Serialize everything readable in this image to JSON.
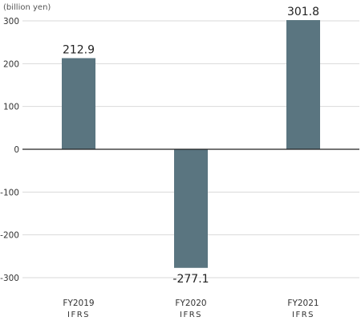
{
  "chart_data": {
    "type": "bar",
    "unit_label": "(billion yen)",
    "title": "",
    "xlabel": "",
    "ylabel": "",
    "categories": [
      {
        "line1": "FY2019",
        "line2": "IFRS"
      },
      {
        "line1": "FY2020",
        "line2": "IFRS"
      },
      {
        "line1": "FY2021",
        "line2": "IFRS"
      }
    ],
    "values": [
      212.9,
      -277.1,
      301.8
    ],
    "data_labels": [
      "212.9",
      "-277.1",
      "301.8"
    ],
    "yticks": [
      300,
      200,
      100,
      0,
      -100,
      -200,
      -300
    ],
    "ylim": [
      -300,
      300
    ],
    "grid": true,
    "colors": {
      "bar": "#5a7580",
      "grid": "#d9d9d9",
      "zero_line": "#222222"
    }
  }
}
